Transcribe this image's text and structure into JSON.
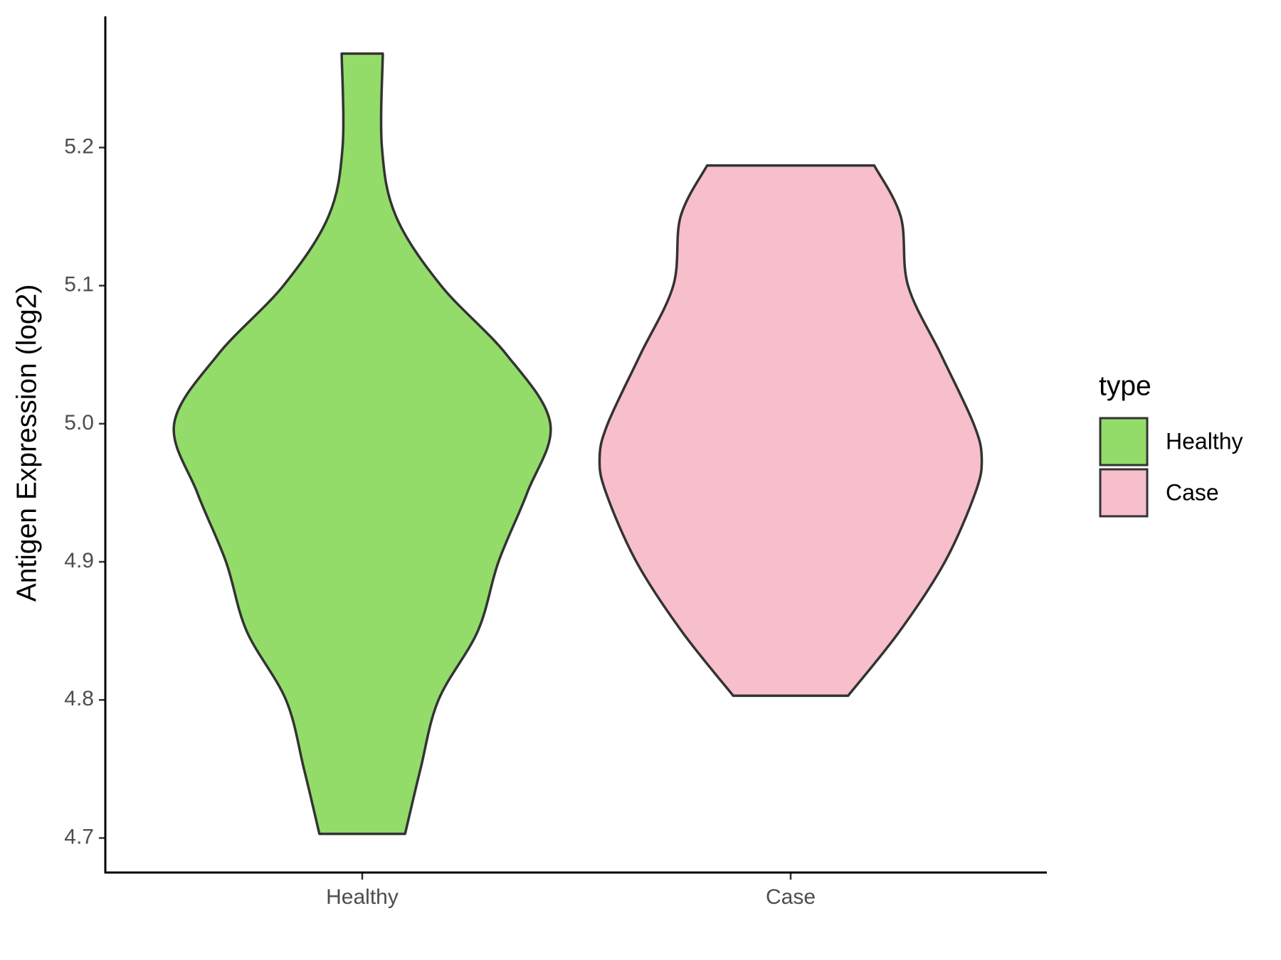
{
  "chart_data": {
    "type": "violin",
    "y_label": "Antigen Expression (log2)",
    "categories": [
      "Healthy",
      "Case"
    ],
    "legend_title": "type",
    "legend_position": "right",
    "series": [
      {
        "name": "Healthy",
        "color": "#93dc6a",
        "y": [
          5.268,
          5.2,
          5.15,
          5.1,
          5.05,
          5.0,
          4.95,
          4.9,
          4.85,
          4.8,
          4.75,
          4.703
        ],
        "widths": [
          0.048,
          0.046,
          0.079,
          0.184,
          0.337,
          0.439,
          0.385,
          0.318,
          0.27,
          0.178,
          0.136,
          0.1
        ]
      },
      {
        "name": "Case",
        "color": "#f7bfcb",
        "y": [
          5.187,
          5.15,
          5.1,
          5.05,
          5.0,
          4.975,
          4.95,
          4.9,
          4.85,
          4.803
        ],
        "widths": [
          0.195,
          0.257,
          0.274,
          0.351,
          0.427,
          0.446,
          0.431,
          0.36,
          0.255,
          0.134
        ]
      }
    ],
    "ylim": [
      4.675,
      5.295
    ],
    "yticks": [
      {
        "value": 4.7,
        "label": "4.7"
      },
      {
        "value": 4.8,
        "label": "4.8"
      },
      {
        "value": 4.9,
        "label": "4.9"
      },
      {
        "value": 5.0,
        "label": "5.0"
      },
      {
        "value": 5.1,
        "label": "5.1"
      },
      {
        "value": 5.2,
        "label": "5.2"
      }
    ],
    "grid": false
  }
}
